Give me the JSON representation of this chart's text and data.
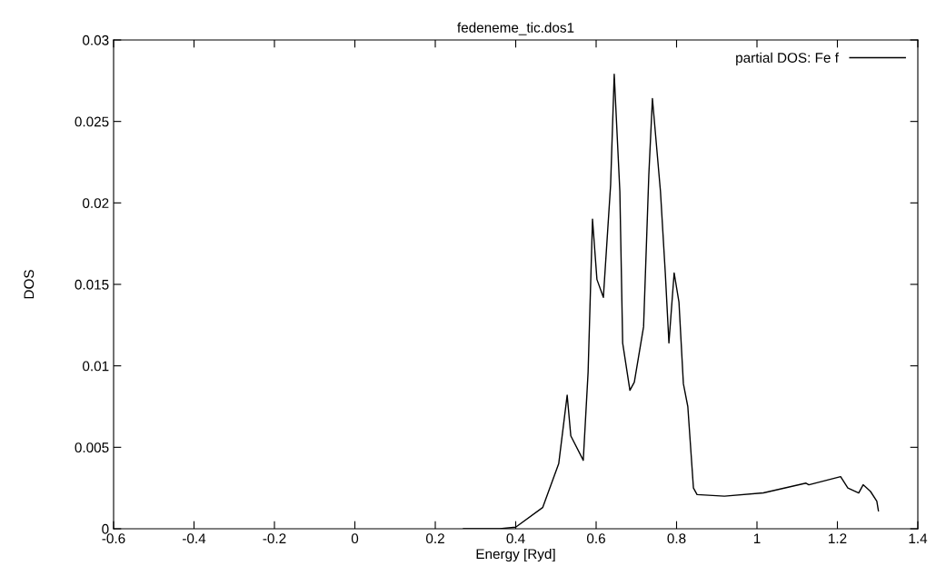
{
  "chart_data": {
    "type": "line",
    "title": "fedeneme_tic.dos1",
    "xlabel": "Energy [Ryd]",
    "ylabel": "DOS",
    "xlim": [
      -0.6,
      1.4
    ],
    "xticks": [
      -0.6,
      -0.4,
      -0.2,
      0,
      0.2,
      0.4,
      0.6,
      0.8,
      1,
      1.2,
      1.4
    ],
    "ylim": [
      0,
      0.03
    ],
    "yticks": [
      0,
      0.005,
      0.01,
      0.015,
      0.02,
      0.025,
      0.03
    ],
    "grid": false,
    "legend": "top right",
    "series": [
      {
        "name": "partial DOS: Fe f",
        "color": "#000000",
        "x": [
          0.27,
          0.36,
          0.4,
          0.467,
          0.507,
          0.528,
          0.537,
          0.568,
          0.58,
          0.591,
          0.602,
          0.618,
          0.636,
          0.645,
          0.659,
          0.666,
          0.684,
          0.695,
          0.718,
          0.731,
          0.74,
          0.76,
          0.772,
          0.781,
          0.794,
          0.806,
          0.817,
          0.828,
          0.842,
          0.851,
          0.919,
          1.016,
          1.122,
          1.129,
          1.208,
          1.226,
          1.253,
          1.264,
          1.282,
          1.298,
          1.302
        ],
        "values": [
          0,
          0,
          0.0001,
          0.0013,
          0.004,
          0.0082,
          0.0057,
          0.0042,
          0.0096,
          0.019,
          0.0153,
          0.0142,
          0.0211,
          0.0279,
          0.0207,
          0.0114,
          0.0085,
          0.009,
          0.0124,
          0.0217,
          0.0264,
          0.0207,
          0.0157,
          0.0114,
          0.0157,
          0.0139,
          0.0089,
          0.0075,
          0.0025,
          0.0021,
          0.002,
          0.0022,
          0.0028,
          0.0027,
          0.0032,
          0.0025,
          0.0022,
          0.0027,
          0.0023,
          0.0017,
          0.0011
        ]
      }
    ]
  }
}
